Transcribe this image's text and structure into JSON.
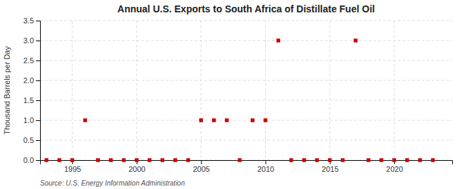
{
  "chart_data": {
    "type": "scatter",
    "title": "Annual U.S. Exports to South Africa of Distillate Fuel Oil",
    "ylabel": "Thousand Barrels per Day",
    "source": "Source: U.S. Energy Information Administration",
    "x": [
      1993,
      1994,
      1995,
      1996,
      1997,
      1998,
      1999,
      2000,
      2001,
      2002,
      2003,
      2004,
      2005,
      2006,
      2007,
      2008,
      2009,
      2010,
      2011,
      2012,
      2013,
      2014,
      2015,
      2016,
      2017,
      2018,
      2019,
      2020,
      2021,
      2022,
      2023
    ],
    "values": [
      0,
      0,
      0,
      1,
      0,
      0,
      0,
      0,
      0,
      0,
      0,
      0,
      1,
      1,
      1,
      0,
      1,
      1,
      3,
      0,
      0,
      0,
      0,
      0,
      3,
      0,
      0,
      0,
      0,
      0,
      0
    ],
    "color": "#cc0000",
    "marker": "square",
    "xlim": [
      1992.5,
      2024.5
    ],
    "xticks": [
      1995,
      2000,
      2005,
      2010,
      2015,
      2020
    ],
    "ylim": [
      0,
      3.5
    ],
    "yticks": [
      {
        "value": 0.0,
        "label": "0.0"
      },
      0.5,
      {
        "value": 1.0,
        "label": "1.0"
      },
      1.5,
      {
        "value": 2.0,
        "label": "2.0"
      },
      2.5,
      {
        "value": 3.0,
        "label": "3.0"
      },
      3.5
    ],
    "grid": true
  }
}
